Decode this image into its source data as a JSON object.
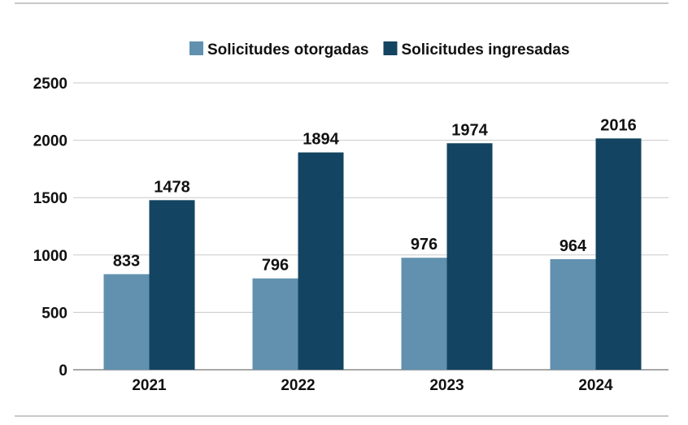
{
  "chart_data": {
    "type": "bar",
    "title": "",
    "xlabel": "",
    "ylabel": "",
    "categories": [
      "2021",
      "2022",
      "2023",
      "2024"
    ],
    "series": [
      {
        "name": "Solicitudes otorgadas",
        "color": "#6191AE",
        "values": [
          833,
          796,
          976,
          964
        ]
      },
      {
        "name": "Solicitudes ingresadas",
        "color": "#134461",
        "values": [
          1478,
          1894,
          1974,
          2016
        ]
      }
    ],
    "ylim": [
      0,
      2500
    ],
    "yticks": [
      0,
      500,
      1000,
      1500,
      2000,
      2500
    ],
    "grid": true,
    "legend": "top-right",
    "data_labels": true
  }
}
